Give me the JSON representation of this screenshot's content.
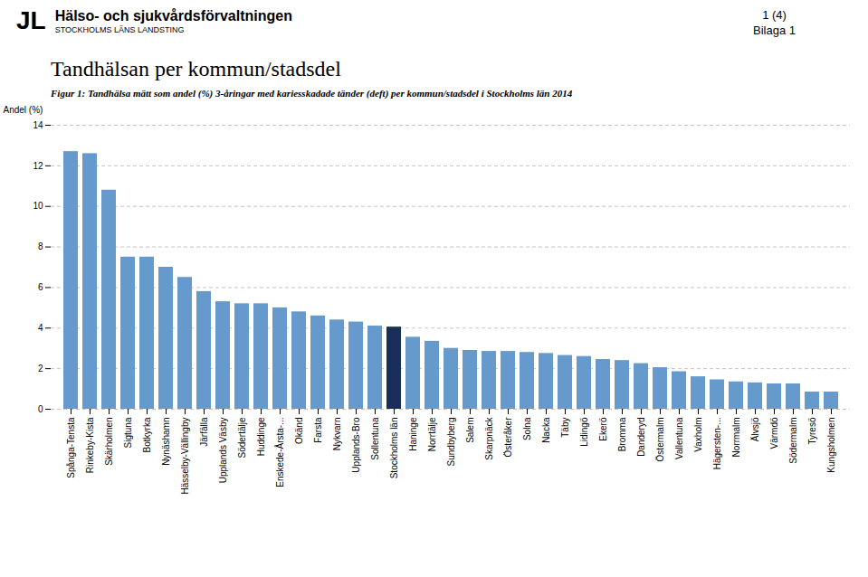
{
  "chart_data": {
    "type": "bar",
    "title": "Tandhälsan per kommun/stadsdel",
    "subtitle": "Figur 1: Tandhälsa mätt som andel (%) 3-åringar med kariesskadade tänder (deft) per kommun/stadsdel i Stockholms län 2014",
    "annotations": [
      "JL",
      "Hälso- och sjukvårdsförvaltningen",
      "STOCKHOLMS LÄNS LANDSTING",
      "1 (4)",
      "Bilaga 1"
    ],
    "ylabel": "Andel (%)",
    "categories": [
      "Spånga-Tensta",
      "Rinkeby-Kista",
      "Skärholmen",
      "Sigtuna",
      "Botkyrka",
      "Nynäshamn",
      "Hässelby-Vällingby",
      "Järfälla",
      "Upplands Väsby",
      "Södertälje",
      "Huddinge",
      "Enskede-Årsta-...",
      "Okänd",
      "Farsta",
      "Nykvarn",
      "Upplands-Bro",
      "Sollentuna",
      "Stockholms län",
      "Haninge",
      "Norrtälje",
      "Sundbyberg",
      "Salem",
      "Skarpnäck",
      "Österåker",
      "Solna",
      "Nacka",
      "Täby",
      "Lidingö",
      "Ekerö",
      "Bromma",
      "Danderyd",
      "Östermalm",
      "Vallentuna",
      "Vaxholm",
      "Hägersten-...",
      "Norrmalm",
      "Älvsjö",
      "Värmdö",
      "Södermalm",
      "Tyresö",
      "Kungsholmen"
    ],
    "values": [
      12.7,
      12.6,
      10.8,
      7.5,
      7.5,
      7.0,
      6.5,
      5.8,
      5.3,
      5.2,
      5.2,
      5.0,
      4.8,
      4.6,
      4.4,
      4.3,
      4.1,
      4.05,
      3.55,
      3.35,
      3.0,
      2.9,
      2.85,
      2.85,
      2.8,
      2.75,
      2.65,
      2.6,
      2.45,
      2.4,
      2.25,
      2.05,
      1.85,
      1.6,
      1.45,
      1.35,
      1.3,
      1.25,
      1.25,
      0.85,
      0.85
    ],
    "colors": [
      "#6699CC",
      "#6699CC",
      "#6699CC",
      "#6699CC",
      "#6699CC",
      "#6699CC",
      "#6699CC",
      "#6699CC",
      "#6699CC",
      "#6699CC",
      "#6699CC",
      "#6699CC",
      "#6699CC",
      "#6699CC",
      "#6699CC",
      "#6699CC",
      "#6699CC",
      "#1a2e5a",
      "#6699CC",
      "#6699CC",
      "#6699CC",
      "#6699CC",
      "#6699CC",
      "#6699CC",
      "#6699CC",
      "#6699CC",
      "#6699CC",
      "#6699CC",
      "#6699CC",
      "#6699CC",
      "#6699CC",
      "#6699CC",
      "#6699CC",
      "#6699CC",
      "#6699CC",
      "#6699CC",
      "#6699CC",
      "#6699CC",
      "#6699CC",
      "#6699CC",
      "#6699CC"
    ],
    "ylim": [
      0,
      14
    ],
    "yticks": [
      0,
      2,
      4,
      6,
      8,
      10,
      12,
      14
    ],
    "grid": true
  }
}
